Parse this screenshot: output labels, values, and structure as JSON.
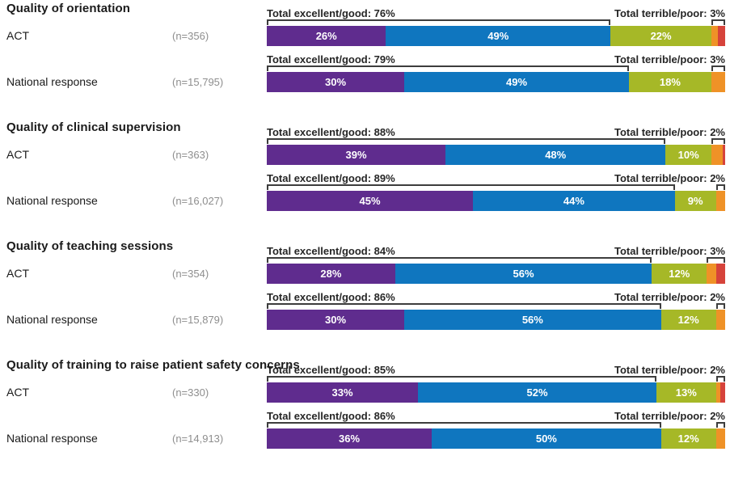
{
  "colors": {
    "purple": "#5f2c8e",
    "blue": "#0f76bf",
    "green": "#a6b827",
    "orange": "#ef9227",
    "red": "#d6433b",
    "bracket_line": "#3d3d3d",
    "annotation_text": "#262626",
    "sample_size_text": "#8e8e8e"
  },
  "chart_data": {
    "type": "bar",
    "subtype": "horizontal_stacked_100pct",
    "unit": "%",
    "legend_position": "none",
    "segment_order": [
      "purple",
      "blue",
      "green",
      "orange",
      "red"
    ],
    "questions": [
      {
        "title": "Quality of orientation",
        "rows": [
          {
            "label": "ACT",
            "n": "(n=356)",
            "total_excellent_good_label": "Total excellent/good: 76%",
            "total_excellent_good_pct": 76,
            "total_terrible_poor_label": "Total terrible/poor: 3%",
            "total_terrible_poor_pct": 3,
            "segments": [
              {
                "color": "purple",
                "pct": 26,
                "label": "26%"
              },
              {
                "color": "blue",
                "pct": 49,
                "label": "49%"
              },
              {
                "color": "green",
                "pct": 22,
                "label": "22%"
              },
              {
                "color": "orange",
                "pct": 1.5,
                "label": ""
              },
              {
                "color": "red",
                "pct": 1.5,
                "label": ""
              }
            ]
          },
          {
            "label": "National response",
            "n": "(n=15,795)",
            "total_excellent_good_label": "Total excellent/good: 79%",
            "total_excellent_good_pct": 79,
            "total_terrible_poor_label": "Total terrible/poor: 3%",
            "total_terrible_poor_pct": 3,
            "segments": [
              {
                "color": "purple",
                "pct": 30,
                "label": "30%"
              },
              {
                "color": "blue",
                "pct": 49,
                "label": "49%"
              },
              {
                "color": "green",
                "pct": 18,
                "label": "18%"
              },
              {
                "color": "orange",
                "pct": 3,
                "label": ""
              },
              {
                "color": "red",
                "pct": 0,
                "label": ""
              }
            ]
          }
        ]
      },
      {
        "title": "Quality of clinical supervision",
        "rows": [
          {
            "label": "ACT",
            "n": "(n=363)",
            "total_excellent_good_label": "Total excellent/good: 88%",
            "total_excellent_good_pct": 88,
            "total_terrible_poor_label": "Total terrible/poor: 2%",
            "total_terrible_poor_pct": 2,
            "segments": [
              {
                "color": "purple",
                "pct": 39,
                "label": "39%"
              },
              {
                "color": "blue",
                "pct": 48,
                "label": "48%"
              },
              {
                "color": "green",
                "pct": 10,
                "label": "10%"
              },
              {
                "color": "orange",
                "pct": 2.5,
                "label": ""
              },
              {
                "color": "red",
                "pct": 0.5,
                "label": ""
              }
            ]
          },
          {
            "label": "National response",
            "n": "(n=16,027)",
            "total_excellent_good_label": "Total excellent/good: 89%",
            "total_excellent_good_pct": 89,
            "total_terrible_poor_label": "Total terrible/poor: 2%",
            "total_terrible_poor_pct": 2,
            "segments": [
              {
                "color": "purple",
                "pct": 45,
                "label": "45%"
              },
              {
                "color": "blue",
                "pct": 44,
                "label": "44%"
              },
              {
                "color": "green",
                "pct": 9,
                "label": "9%"
              },
              {
                "color": "orange",
                "pct": 2,
                "label": ""
              },
              {
                "color": "red",
                "pct": 0,
                "label": ""
              }
            ]
          }
        ]
      },
      {
        "title": "Quality of teaching sessions",
        "rows": [
          {
            "label": "ACT",
            "n": "(n=354)",
            "total_excellent_good_label": "Total excellent/good: 84%",
            "total_excellent_good_pct": 84,
            "total_terrible_poor_label": "Total terrible/poor: 3%",
            "total_terrible_poor_pct": 3,
            "segments": [
              {
                "color": "purple",
                "pct": 28,
                "label": "28%"
              },
              {
                "color": "blue",
                "pct": 56,
                "label": "56%"
              },
              {
                "color": "green",
                "pct": 12,
                "label": "12%"
              },
              {
                "color": "orange",
                "pct": 2,
                "label": ""
              },
              {
                "color": "red",
                "pct": 2,
                "label": ""
              }
            ]
          },
          {
            "label": "National response",
            "n": "(n=15,879)",
            "total_excellent_good_label": "Total excellent/good: 86%",
            "total_excellent_good_pct": 86,
            "total_terrible_poor_label": "Total terrible/poor: 2%",
            "total_terrible_poor_pct": 2,
            "segments": [
              {
                "color": "purple",
                "pct": 30,
                "label": "30%"
              },
              {
                "color": "blue",
                "pct": 56,
                "label": "56%"
              },
              {
                "color": "green",
                "pct": 12,
                "label": "12%"
              },
              {
                "color": "orange",
                "pct": 2,
                "label": ""
              },
              {
                "color": "red",
                "pct": 0,
                "label": ""
              }
            ]
          }
        ]
      },
      {
        "title": "Quality of training to raise patient safety concerns",
        "rows": [
          {
            "label": "ACT",
            "n": "(n=330)",
            "total_excellent_good_label": "Total excellent/good: 85%",
            "total_excellent_good_pct": 85,
            "total_terrible_poor_label": "Total terrible/poor: 2%",
            "total_terrible_poor_pct": 2,
            "segments": [
              {
                "color": "purple",
                "pct": 33,
                "label": "33%"
              },
              {
                "color": "blue",
                "pct": 52,
                "label": "52%"
              },
              {
                "color": "green",
                "pct": 13,
                "label": "13%"
              },
              {
                "color": "orange",
                "pct": 1,
                "label": ""
              },
              {
                "color": "red",
                "pct": 1,
                "label": ""
              }
            ]
          },
          {
            "label": "National response",
            "n": "(n=14,913)",
            "total_excellent_good_label": "Total excellent/good: 86%",
            "total_excellent_good_pct": 86,
            "total_terrible_poor_label": "Total terrible/poor: 2%",
            "total_terrible_poor_pct": 2,
            "segments": [
              {
                "color": "purple",
                "pct": 36,
                "label": "36%"
              },
              {
                "color": "blue",
                "pct": 50,
                "label": "50%"
              },
              {
                "color": "green",
                "pct": 12,
                "label": "12%"
              },
              {
                "color": "orange",
                "pct": 2,
                "label": ""
              },
              {
                "color": "red",
                "pct": 0,
                "label": ""
              }
            ]
          }
        ]
      }
    ]
  }
}
